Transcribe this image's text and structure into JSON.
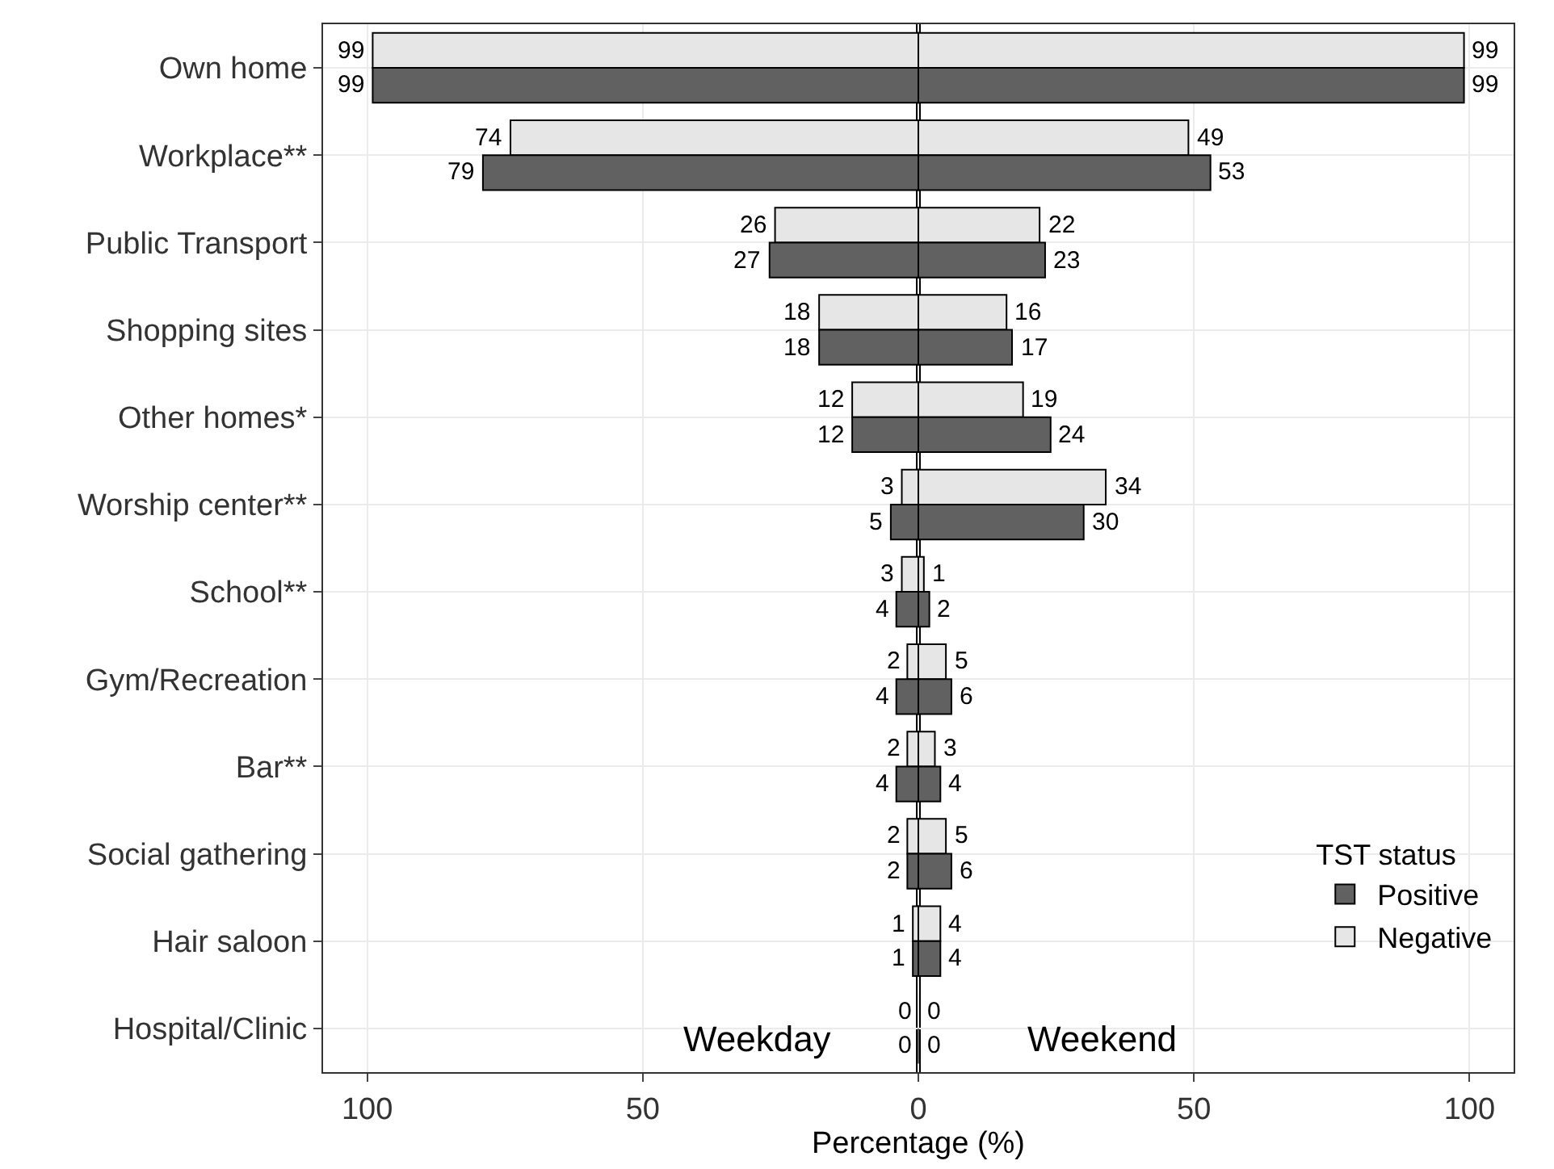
{
  "chart_data": {
    "type": "bar",
    "orientation": "horizontal",
    "xlabel": "Percentage (%)",
    "legend_title": "TST status",
    "legend": "bottom right",
    "grid": true,
    "categories": [
      "Own home",
      "Workplace**",
      "Public Transport",
      "Shopping sites",
      "Other homes*",
      "Worship center**",
      "School**",
      "Gym/Recreation",
      "Bar**",
      "Social gathering",
      "Hair saloon",
      "Hospital/Clinic"
    ],
    "series": [
      {
        "name": "Negative",
        "color": "#e6e6e6",
        "values": [
          99,
          74,
          26,
          18,
          12,
          3,
          3,
          2,
          2,
          2,
          1,
          0
        ],
        "base": [
          -99,
          -74,
          -26,
          -18,
          -12,
          -3,
          -3,
          -2,
          -2,
          -2,
          -1,
          0
        ],
        "value_labels": [
          "99",
          "74",
          "26",
          "18",
          "12",
          "3",
          "3",
          "2",
          "2",
          "2",
          "1",
          "0"
        ]
      },
      {
        "name": "Positive",
        "color": "#616161",
        "values": [
          99,
          79,
          27,
          18,
          12,
          5,
          4,
          4,
          4,
          2,
          1,
          0
        ],
        "base": [
          -99,
          -79,
          -27,
          -18,
          -12,
          -5,
          -4,
          -4,
          -4,
          -2,
          -1,
          0
        ],
        "value_labels": [
          "99",
          "79",
          "27",
          "18",
          "12",
          "5",
          "4",
          "4",
          "4",
          "2",
          "1",
          "0"
        ]
      },
      {
        "color": "#e6e6e6",
        "values": [
          99,
          49,
          22,
          16,
          19,
          34,
          1,
          5,
          3,
          5,
          4,
          0
        ],
        "value_labels": [
          "99",
          "49",
          "22",
          "16",
          "19",
          "34",
          "1",
          "5",
          "3",
          "5",
          "4",
          "0"
        ]
      },
      {
        "color": "#616161",
        "values": [
          99,
          53,
          23,
          17,
          24,
          30,
          2,
          6,
          4,
          6,
          4,
          0
        ],
        "value_labels": [
          "99",
          "53",
          "23",
          "17",
          "24",
          "30",
          "2",
          "6",
          "4",
          "6",
          "4",
          "0"
        ]
      }
    ],
    "xlim": [
      -108,
      108
    ],
    "xticks": [
      {
        "value": -100,
        "label": "100"
      },
      {
        "value": -50,
        "label": "50"
      },
      0,
      50,
      100
    ],
    "ref_lines": [
      {
        "axis": "x",
        "value": 0,
        "color": "#000000"
      }
    ],
    "annotations": [
      "Weekday",
      "Weekend"
    ]
  }
}
